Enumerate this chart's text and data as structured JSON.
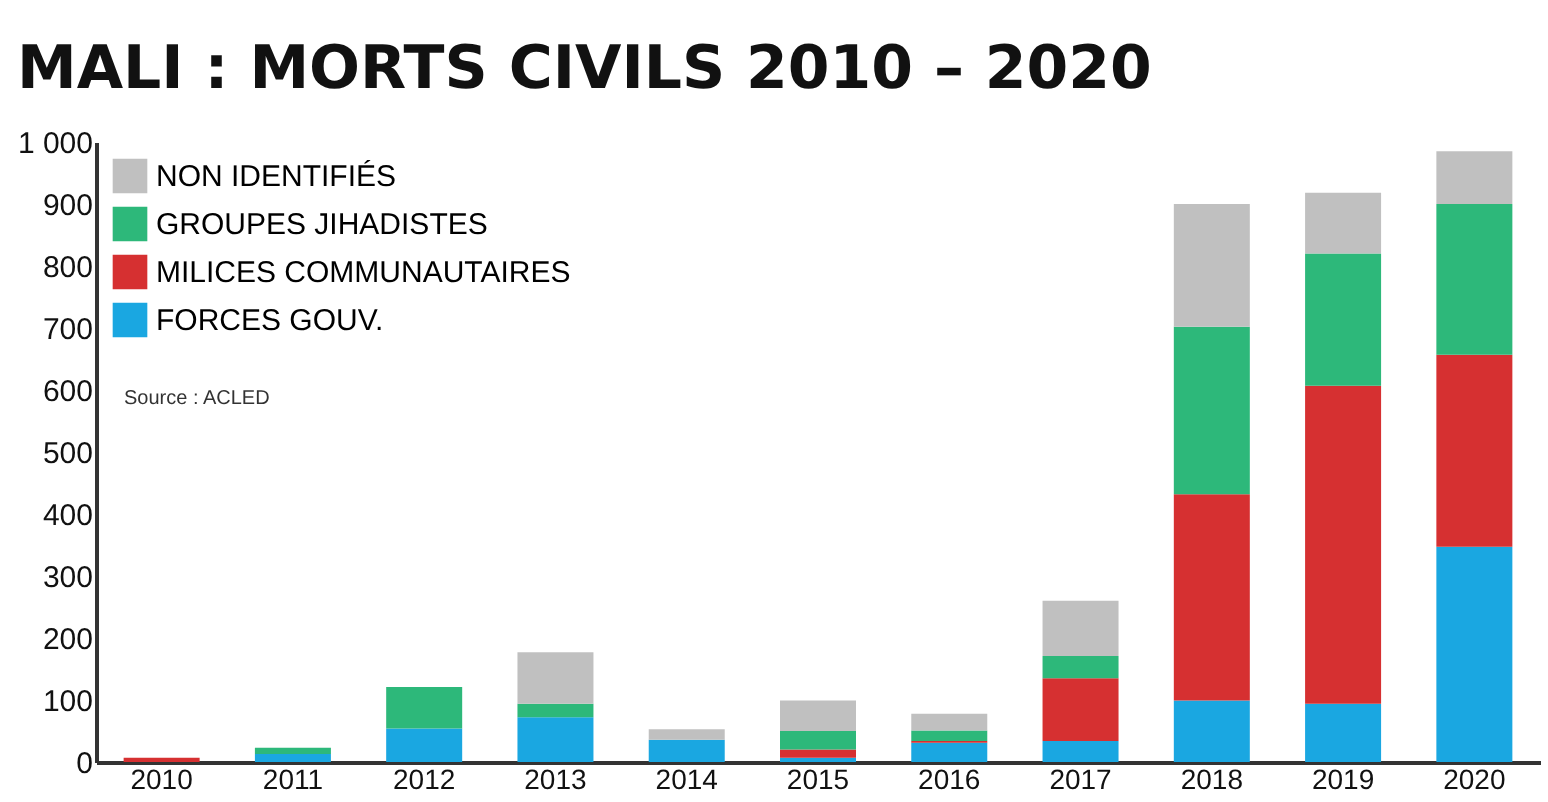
{
  "chart_data": {
    "type": "bar",
    "title": "MALI : MORTS CIVILS 2010 – 2020",
    "stacked": true,
    "categories": [
      "2010",
      "2011",
      "2012",
      "2013",
      "2014",
      "2015",
      "2016",
      "2017",
      "2018",
      "2019",
      "2020"
    ],
    "series": [
      {
        "name": "FORCES GOUV.",
        "color": "#1aa7e1",
        "values": [
          0,
          13,
          54,
          72,
          36,
          7,
          31,
          34,
          99,
          94,
          347
        ]
      },
      {
        "name": "MILICES COMMUNAUTAIRES",
        "color": "#d63031",
        "values": [
          7,
          0,
          0,
          0,
          0,
          13,
          3,
          101,
          333,
          513,
          310
        ]
      },
      {
        "name": "GROUPES JIHADISTES",
        "color": "#2db87a",
        "values": [
          0,
          10,
          67,
          22,
          0,
          30,
          17,
          36,
          270,
          213,
          243
        ]
      },
      {
        "name": "NON IDENTIFIÉS",
        "color": "#c0c0c0",
        "values": [
          0,
          0,
          0,
          83,
          17,
          49,
          27,
          89,
          198,
          98,
          85
        ]
      }
    ],
    "ylim": [
      0,
      1000
    ],
    "yticks": [
      0,
      100,
      200,
      300,
      400,
      500,
      600,
      700,
      800,
      900,
      {
        "value": 1000,
        "label": "1 000"
      }
    ],
    "grid": false,
    "legend": "top left",
    "annotations": [
      "Source : ACLED"
    ]
  }
}
